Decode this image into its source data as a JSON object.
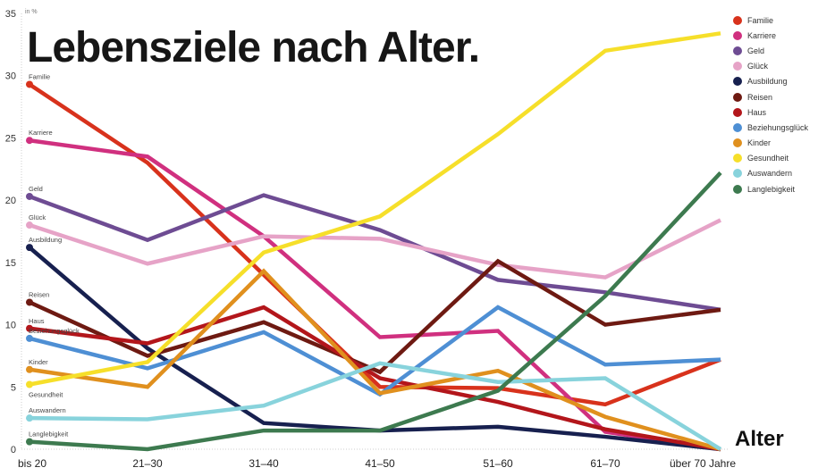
{
  "chart_data": {
    "type": "line",
    "title": "Lebensziele nach Alter.",
    "unit_label": "in %",
    "xlabel": "Alter",
    "ylabel": "",
    "categories": [
      "bis 20",
      "21–30",
      "31–40",
      "41–50",
      "51–60",
      "61–70",
      "über 70 Jahre"
    ],
    "ylim": [
      0,
      35
    ],
    "yticks": [
      "0",
      "5",
      "10",
      "15",
      "20",
      "25",
      "30",
      "35"
    ],
    "grid": false,
    "legend_position": "top-right",
    "series": [
      {
        "name": "Familie",
        "color": "#d8321c",
        "values": [
          29.3,
          23.0,
          14.0,
          5.0,
          4.9,
          3.6,
          7.2
        ]
      },
      {
        "name": "Karriere",
        "color": "#d0307f",
        "values": [
          24.8,
          23.5,
          17.1,
          9.0,
          9.5,
          1.4,
          0
        ]
      },
      {
        "name": "Geld",
        "color": "#6e4c93",
        "values": [
          20.3,
          16.8,
          20.4,
          17.6,
          13.6,
          12.6,
          11.2
        ]
      },
      {
        "name": "Glück",
        "color": "#e6a3c7",
        "values": [
          18.0,
          14.9,
          17.1,
          16.9,
          14.8,
          13.8,
          18.4
        ]
      },
      {
        "name": "Ausbildung",
        "color": "#17204f",
        "values": [
          16.2,
          8.1,
          2.1,
          1.5,
          1.8,
          1.0,
          0
        ]
      },
      {
        "name": "Reisen",
        "color": "#6e1a12",
        "values": [
          11.8,
          7.5,
          10.2,
          6.2,
          15.1,
          10.0,
          11.2
        ]
      },
      {
        "name": "Haus",
        "color": "#b3161b",
        "values": [
          9.7,
          8.5,
          11.4,
          5.7,
          3.8,
          1.6,
          0
        ]
      },
      {
        "name": "Beziehungsglück",
        "color": "#4e8fd4",
        "values": [
          8.9,
          6.5,
          9.4,
          4.4,
          11.4,
          6.8,
          7.2
        ]
      },
      {
        "name": "Kinder",
        "color": "#e0901e",
        "values": [
          6.4,
          5.0,
          14.3,
          4.5,
          6.3,
          2.6,
          0
        ]
      },
      {
        "name": "Gesundheit",
        "color": "#f6df2a",
        "values": [
          5.2,
          7.0,
          15.8,
          18.7,
          25.3,
          32.0,
          33.4
        ]
      },
      {
        "name": "Auswandern",
        "color": "#88d3dc",
        "values": [
          2.5,
          2.4,
          3.5,
          6.9,
          5.4,
          5.7,
          0
        ]
      },
      {
        "name": "Langlebigkeit",
        "color": "#3d7a4f",
        "values": [
          0.6,
          0.0,
          1.5,
          1.5,
          4.7,
          12.3,
          22.2
        ]
      }
    ]
  }
}
